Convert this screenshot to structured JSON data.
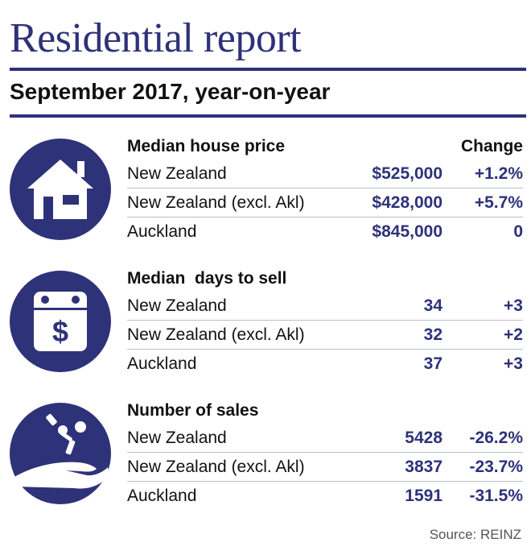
{
  "title": "Residential report",
  "subtitle": "September 2017, year-on-year",
  "source": "Source: REINZ",
  "colors": {
    "accent": "#2e3279",
    "divider": "#b9bfc9"
  },
  "chart_data": {
    "type": "table",
    "columns": [
      "",
      "",
      "Change"
    ],
    "sections": [
      {
        "title": "Median house price",
        "change_header": "Change",
        "icon": "house-icon",
        "rows": [
          {
            "label": "New Zealand",
            "value": "$525,000",
            "change": "+1.2%"
          },
          {
            "label": "New Zealand (excl. Akl)",
            "value": "$428,000",
            "change": "+5.7%"
          },
          {
            "label": "Auckland",
            "value": "$845,000",
            "change": "0"
          }
        ]
      },
      {
        "title": "Median  days to sell",
        "change_header": "",
        "icon": "calendar-dollar-icon",
        "rows": [
          {
            "label": "New Zealand",
            "value": "34",
            "change": "+3"
          },
          {
            "label": "New Zealand (excl. Akl)",
            "value": "32",
            "change": "+2"
          },
          {
            "label": "Auckland",
            "value": "37",
            "change": "+3"
          }
        ]
      },
      {
        "title": "Number of sales",
        "change_header": "",
        "icon": "hand-keys-icon",
        "rows": [
          {
            "label": "New Zealand",
            "value": "5428",
            "change": "-26.2%"
          },
          {
            "label": "New Zealand (excl. Akl)",
            "value": "3837",
            "change": "-23.7%"
          },
          {
            "label": "Auckland",
            "value": "1591",
            "change": "-31.5%"
          }
        ]
      }
    ]
  }
}
